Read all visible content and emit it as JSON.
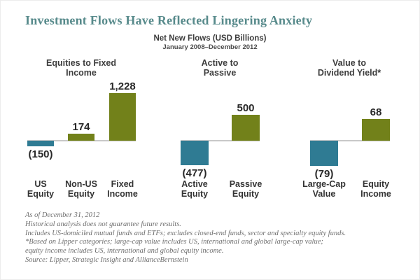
{
  "page": {
    "title": "Investment Flows Have Reflected Lingering Anxiety"
  },
  "chart_data": {
    "type": "bar",
    "title": "Net New Flows (USD Billions)",
    "subtitle": "January 2008–December 2012",
    "unit": "USD Billions",
    "legend": false,
    "grid": false,
    "baseline_value": 0,
    "layout_hint": "three separate panels, each panel uses its own value scale around a shared zero baseline",
    "colors": {
      "positive_bar": "#72811a",
      "negative_bar": "#2f7b93",
      "baseline": "#c9c9c9",
      "title_accent": "#578a8b"
    },
    "groups": [
      {
        "header": "Equities to Fixed\nIncome",
        "bars": [
          {
            "category": "US\nEquity",
            "value": -150,
            "label": "(150)"
          },
          {
            "category": "Non-US\nEquity",
            "value": 174,
            "label": "174"
          },
          {
            "category": "Fixed\nIncome",
            "value": 1228,
            "label": "1,228"
          }
        ]
      },
      {
        "header": "Active to\nPassive",
        "bars": [
          {
            "category": "Active\nEquity",
            "value": -477,
            "label": "(477)"
          },
          {
            "category": "Passive\nEquity",
            "value": 500,
            "label": "500"
          }
        ]
      },
      {
        "header": "Value to\nDividend Yield*",
        "bars": [
          {
            "category": "Large-Cap\nValue",
            "value": -79,
            "label": "(79)"
          },
          {
            "category": "Equity\nIncome",
            "value": 68,
            "label": "68"
          }
        ]
      }
    ]
  },
  "footnotes": {
    "lines": [
      "As of December 31, 2012",
      "Historical analysis does not guarantee future results.",
      "Includes US-domiciled mutual funds and ETFs; excludes closed-end funds, sector and specialty equity funds.",
      "*Based on Lipper categories; large-cap value includes US, international and global large-cap value;",
      "equity income includes US, international and global equity income.",
      "Source: Lipper, Strategic Insight and AllianceBernstein"
    ]
  }
}
